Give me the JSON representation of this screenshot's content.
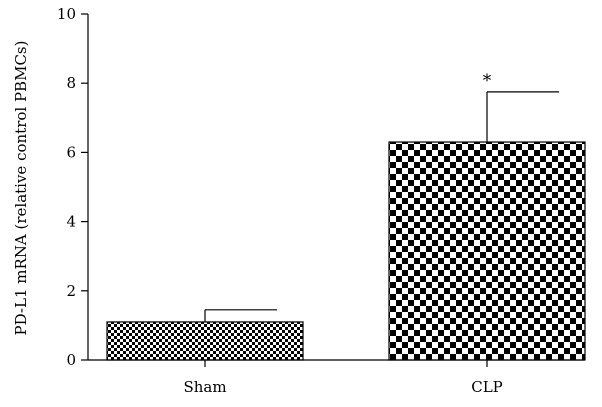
{
  "chart_data": {
    "type": "bar",
    "categories": [
      "Sham",
      "CLP"
    ],
    "values": [
      1.1,
      6.3
    ],
    "errors": [
      0.35,
      1.45
    ],
    "annotations": [
      "",
      "*"
    ],
    "title": "",
    "xlabel": "",
    "ylabel": "PD-L1 mRNA (relative control PBMCs)",
    "ylim": [
      0,
      10
    ],
    "yticks": [
      "0",
      "2",
      "4",
      "6",
      "8",
      "10"
    ],
    "grid": false,
    "legend": "none",
    "bar_pattern": "checkerboard",
    "colors": {
      "bar_fill_dark": "#000000",
      "bar_fill_light": "#ffffff",
      "axis": "#000000"
    }
  }
}
